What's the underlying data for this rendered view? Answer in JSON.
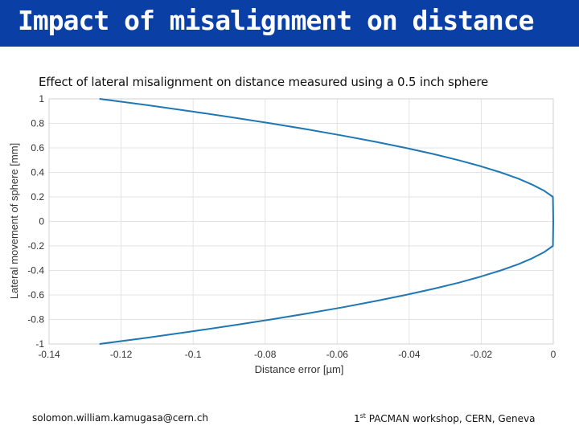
{
  "slide": {
    "title": "Impact of misalignment on distance",
    "footer_email": "solomon.william.kamugasa@cern.ch",
    "footer_event_num": "1",
    "footer_event_sup": "st",
    "footer_event_rest": " PACMAN workshop, CERN, Geneva",
    "title_bar_color": "#0a3fa6"
  },
  "chart_data": {
    "type": "line",
    "title": "Effect of lateral misalignment on distance measured using a 0.5 inch sphere",
    "xlabel": "Distance error [µm]",
    "ylabel": "Lateral movement of sphere [mm]",
    "xlim": [
      -0.14,
      0
    ],
    "ylim": [
      -1,
      1
    ],
    "xticks": [
      -0.14,
      -0.12,
      -0.1,
      -0.08,
      -0.06,
      -0.04,
      -0.02,
      0
    ],
    "xtick_labels": [
      "-0.14",
      "-0.12",
      "-0.1",
      "-0.08",
      "-0.06",
      "-0.04",
      "-0.02",
      "0"
    ],
    "yticks": [
      -1,
      -0.8,
      -0.6,
      -0.4,
      -0.2,
      0,
      0.2,
      0.4,
      0.6,
      0.8,
      1
    ],
    "ytick_labels": [
      "-1",
      "-0.8",
      "-0.6",
      "-0.4",
      "-0.2",
      "0",
      "0.2",
      "0.4",
      "0.6",
      "0.8",
      "1"
    ],
    "grid": true,
    "line_color": "#1f77b4",
    "series": [
      {
        "x": [
          -0.126,
          -0.113,
          -0.101,
          -0.0894,
          -0.0784,
          -0.0681,
          -0.0584,
          -0.0494,
          -0.041,
          -0.0333,
          -0.0263,
          -0.0201,
          -0.0146,
          -0.0098,
          -0.0058,
          -0.0025,
          -0.0001,
          0,
          -0.0001,
          -0.0025,
          -0.0058,
          -0.0098,
          -0.0146,
          -0.0201,
          -0.0263,
          -0.0333,
          -0.041,
          -0.0494,
          -0.0584,
          -0.0681,
          -0.0784,
          -0.0894,
          -0.101,
          -0.113,
          -0.126
        ],
        "y": [
          1,
          0.95,
          0.9,
          0.85,
          0.8,
          0.75,
          0.7,
          0.65,
          0.6,
          0.55,
          0.5,
          0.45,
          0.4,
          0.35,
          0.3,
          0.25,
          0.2,
          0,
          -0.2,
          -0.25,
          -0.3,
          -0.35,
          -0.4,
          -0.45,
          -0.5,
          -0.55,
          -0.6,
          -0.65,
          -0.7,
          -0.75,
          -0.8,
          -0.85,
          -0.9,
          -0.95,
          -1
        ]
      }
    ]
  }
}
